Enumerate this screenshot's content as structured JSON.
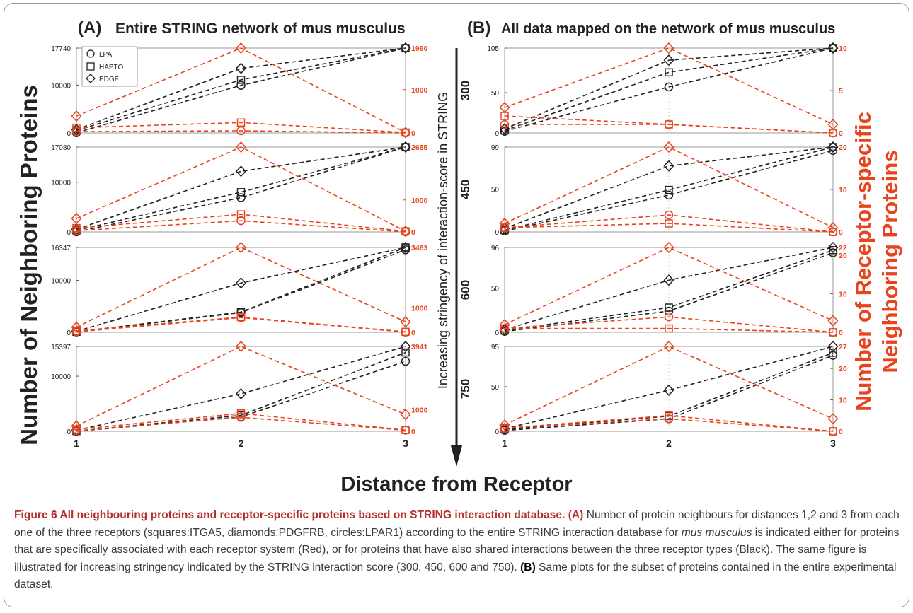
{
  "figure": {
    "panel_titles": [
      "(A) Entire STRING network of mus musculus",
      "(B) All data mapped on the network of mus musculus"
    ],
    "panel_title_letters": [
      "(A)",
      "(B)"
    ],
    "panel_title_texts": [
      "Entire STRING network of mus musculus",
      "All data mapped on the network of mus musculus"
    ],
    "y_left_label": "Number of Neighboring Proteins",
    "y_right_label_line1": "Number of Receptor-specific",
    "y_right_label_line2": "Neighboring Proteins",
    "x_label": "Distance from Receptor",
    "middle_label": "Increasing stringency of interaction-score in STRING",
    "stringency_values": [
      "300",
      "450",
      "600",
      "750"
    ],
    "legend": [
      "LPA",
      "HAPTO",
      "PDGF"
    ]
  },
  "caption": {
    "title": "Figure 6 All neighbouring proteins and receptor-specific proteins based on STRING interaction database.",
    "a_tag": "(A)",
    "part1": "Number of protein neighbours for distances 1,2 and 3 from each one of the three receptors (squares:ITGA5, diamonds:PDGFRB, circles:LPAR1) according to the entire STRING interaction database for",
    "species": "mus musculus",
    "part2": "is indicated either for proteins that are specifically associated with each receptor system (Red), or for proteins that have also shared interactions between the three receptor types (Black). The same figure is illustrated for increasing stringency indicated by the STRING interaction score (300, 450, 600 and 750).",
    "b_tag": "(B)",
    "part3": "Same plots for the subset of proteins contained in the entire experimental dataset."
  },
  "colors": {
    "black_series": "#222222",
    "red_series": "#e8431c",
    "grid": "#d0d0d0"
  },
  "chart_data": [
    {
      "type": "line",
      "panel": "A",
      "stringency": "300",
      "x": [
        1,
        2,
        3
      ],
      "ylim_left": [
        0,
        17740
      ],
      "ylim_right": [
        0,
        1960
      ],
      "yticks_left": [
        "17740",
        "10000",
        "0"
      ],
      "yticks_right": [
        "1960",
        "1000",
        "0"
      ],
      "series": [
        {
          "name": "LPA",
          "axis": "left",
          "color": "black",
          "values": [
            50,
            9950,
            17740
          ]
        },
        {
          "name": "HAPTO",
          "axis": "left",
          "color": "black",
          "values": [
            500,
            11100,
            17740
          ]
        },
        {
          "name": "PDGF",
          "axis": "left",
          "color": "black",
          "values": [
            700,
            13500,
            17740
          ]
        },
        {
          "name": "LPA",
          "axis": "right",
          "color": "red",
          "values": [
            30,
            50,
            0
          ]
        },
        {
          "name": "HAPTO",
          "axis": "right",
          "color": "red",
          "values": [
            120,
            240,
            10
          ]
        },
        {
          "name": "PDGF",
          "axis": "right",
          "color": "red",
          "values": [
            390,
            1960,
            10
          ]
        }
      ]
    },
    {
      "type": "line",
      "panel": "A",
      "stringency": "450",
      "x": [
        1,
        2,
        3
      ],
      "ylim_left": [
        0,
        17080
      ],
      "ylim_right": [
        0,
        2655
      ],
      "yticks_left": [
        "17080",
        "10000",
        "0"
      ],
      "yticks_right": [
        "2655",
        "1000",
        "0"
      ],
      "series": [
        {
          "name": "LPA",
          "axis": "left",
          "color": "black",
          "values": [
            20,
            6900,
            17080
          ]
        },
        {
          "name": "HAPTO",
          "axis": "left",
          "color": "black",
          "values": [
            300,
            8000,
            17080
          ]
        },
        {
          "name": "PDGF",
          "axis": "left",
          "color": "black",
          "values": [
            500,
            12200,
            17080
          ]
        },
        {
          "name": "LPA",
          "axis": "right",
          "color": "red",
          "values": [
            40,
            350,
            0
          ]
        },
        {
          "name": "HAPTO",
          "axis": "right",
          "color": "red",
          "values": [
            120,
            550,
            20
          ]
        },
        {
          "name": "PDGF",
          "axis": "right",
          "color": "red",
          "values": [
            420,
            2655,
            20
          ]
        }
      ]
    },
    {
      "type": "line",
      "panel": "A",
      "stringency": "600",
      "x": [
        1,
        2,
        3
      ],
      "ylim_left": [
        0,
        16347
      ],
      "ylim_right": [
        0,
        3463
      ],
      "yticks_left": [
        "16347",
        "10000",
        "0"
      ],
      "yticks_right": [
        "3463",
        "1000",
        "0"
      ],
      "series": [
        {
          "name": "LPA",
          "axis": "left",
          "color": "black",
          "values": [
            50,
            3800,
            15900
          ]
        },
        {
          "name": "HAPTO",
          "axis": "left",
          "color": "black",
          "values": [
            100,
            3900,
            16347
          ]
        },
        {
          "name": "PDGF",
          "axis": "left",
          "color": "black",
          "values": [
            200,
            9500,
            16347
          ]
        },
        {
          "name": "LPA",
          "axis": "right",
          "color": "red",
          "values": [
            20,
            600,
            10
          ]
        },
        {
          "name": "HAPTO",
          "axis": "right",
          "color": "red",
          "values": [
            60,
            620,
            20
          ]
        },
        {
          "name": "PDGF",
          "axis": "right",
          "color": "red",
          "values": [
            210,
            3463,
            430
          ]
        }
      ]
    },
    {
      "type": "line",
      "panel": "A",
      "stringency": "750",
      "x": [
        1,
        2,
        3
      ],
      "ylim_left": [
        0,
        15397
      ],
      "ylim_right": [
        0,
        3941
      ],
      "yticks_left": [
        "15397",
        "10000",
        "0"
      ],
      "yticks_right": [
        "3941",
        "1000",
        "0"
      ],
      "series": [
        {
          "name": "LPA",
          "axis": "left",
          "color": "black",
          "values": [
            20,
            2600,
            12700
          ]
        },
        {
          "name": "HAPTO",
          "axis": "left",
          "color": "black",
          "values": [
            50,
            2900,
            14300
          ]
        },
        {
          "name": "PDGF",
          "axis": "left",
          "color": "black",
          "values": [
            200,
            6800,
            15397
          ]
        },
        {
          "name": "LPA",
          "axis": "right",
          "color": "red",
          "values": [
            30,
            650,
            50
          ]
        },
        {
          "name": "HAPTO",
          "axis": "right",
          "color": "red",
          "values": [
            90,
            830,
            60
          ]
        },
        {
          "name": "PDGF",
          "axis": "right",
          "color": "red",
          "values": [
            250,
            3941,
            780
          ]
        }
      ]
    },
    {
      "type": "line",
      "panel": "B",
      "stringency": "300",
      "x": [
        1,
        2,
        3
      ],
      "ylim_left": [
        0,
        105
      ],
      "ylim_right": [
        0,
        10
      ],
      "yticks_left": [
        "105",
        "50",
        "0"
      ],
      "yticks_right": [
        "10",
        "5",
        "0"
      ],
      "series": [
        {
          "name": "LPA",
          "axis": "left",
          "color": "black",
          "values": [
            2,
            57,
            105
          ]
        },
        {
          "name": "HAPTO",
          "axis": "left",
          "color": "black",
          "values": [
            3,
            75,
            105
          ]
        },
        {
          "name": "PDGF",
          "axis": "left",
          "color": "black",
          "values": [
            5,
            90,
            105
          ]
        },
        {
          "name": "LPA",
          "axis": "right",
          "color": "red",
          "values": [
            1,
            1,
            0
          ]
        },
        {
          "name": "HAPTO",
          "axis": "right",
          "color": "red",
          "values": [
            2,
            1,
            0
          ]
        },
        {
          "name": "PDGF",
          "axis": "right",
          "color": "red",
          "values": [
            3,
            10,
            1
          ]
        }
      ]
    },
    {
      "type": "line",
      "panel": "B",
      "stringency": "450",
      "x": [
        1,
        2,
        3
      ],
      "ylim_left": [
        0,
        99
      ],
      "ylim_right": [
        0,
        20
      ],
      "yticks_left": [
        "99",
        "50",
        "0"
      ],
      "yticks_right": [
        "20",
        "10",
        "0"
      ],
      "series": [
        {
          "name": "LPA",
          "axis": "left",
          "color": "black",
          "values": [
            1,
            43,
            95
          ]
        },
        {
          "name": "HAPTO",
          "axis": "left",
          "color": "black",
          "values": [
            2,
            49,
            99
          ]
        },
        {
          "name": "PDGF",
          "axis": "left",
          "color": "black",
          "values": [
            4,
            77,
            99
          ]
        },
        {
          "name": "LPA",
          "axis": "right",
          "color": "red",
          "values": [
            1,
            4,
            0
          ]
        },
        {
          "name": "HAPTO",
          "axis": "right",
          "color": "red",
          "values": [
            1,
            2,
            0
          ]
        },
        {
          "name": "PDGF",
          "axis": "right",
          "color": "red",
          "values": [
            2,
            20,
            1
          ]
        }
      ]
    },
    {
      "type": "line",
      "panel": "B",
      "stringency": "600",
      "x": [
        1,
        2,
        3
      ],
      "ylim_left": [
        0,
        96
      ],
      "ylim_right": [
        0,
        22
      ],
      "yticks_left": [
        "96",
        "50",
        "0"
      ],
      "yticks_right": [
        "22",
        "20",
        "10",
        "0"
      ],
      "series": [
        {
          "name": "LPA",
          "axis": "left",
          "color": "black",
          "values": [
            1,
            24,
            90
          ]
        },
        {
          "name": "HAPTO",
          "axis": "left",
          "color": "black",
          "values": [
            2,
            28,
            93
          ]
        },
        {
          "name": "PDGF",
          "axis": "left",
          "color": "black",
          "values": [
            3,
            59,
            96
          ]
        },
        {
          "name": "LPA",
          "axis": "right",
          "color": "red",
          "values": [
            1,
            4,
            0
          ]
        },
        {
          "name": "HAPTO",
          "axis": "right",
          "color": "red",
          "values": [
            1,
            1,
            0
          ]
        },
        {
          "name": "PDGF",
          "axis": "right",
          "color": "red",
          "values": [
            2,
            22,
            3
          ]
        }
      ]
    },
    {
      "type": "line",
      "panel": "B",
      "stringency": "750",
      "x": [
        1,
        2,
        3
      ],
      "ylim_left": [
        0,
        95
      ],
      "ylim_right": [
        0,
        27
      ],
      "yticks_left": [
        "95",
        "50",
        "0"
      ],
      "yticks_right": [
        "27",
        "20",
        "10",
        "0"
      ],
      "series": [
        {
          "name": "LPA",
          "axis": "left",
          "color": "black",
          "values": [
            1,
            14,
            85
          ]
        },
        {
          "name": "HAPTO",
          "axis": "left",
          "color": "black",
          "values": [
            2,
            17,
            88
          ]
        },
        {
          "name": "PDGF",
          "axis": "left",
          "color": "black",
          "values": [
            3,
            46,
            95
          ]
        },
        {
          "name": "LPA",
          "axis": "right",
          "color": "red",
          "values": [
            1,
            4,
            0
          ]
        },
        {
          "name": "HAPTO",
          "axis": "right",
          "color": "red",
          "values": [
            1,
            5,
            0
          ]
        },
        {
          "name": "PDGF",
          "axis": "right",
          "color": "red",
          "values": [
            2,
            27,
            4
          ]
        }
      ]
    }
  ]
}
